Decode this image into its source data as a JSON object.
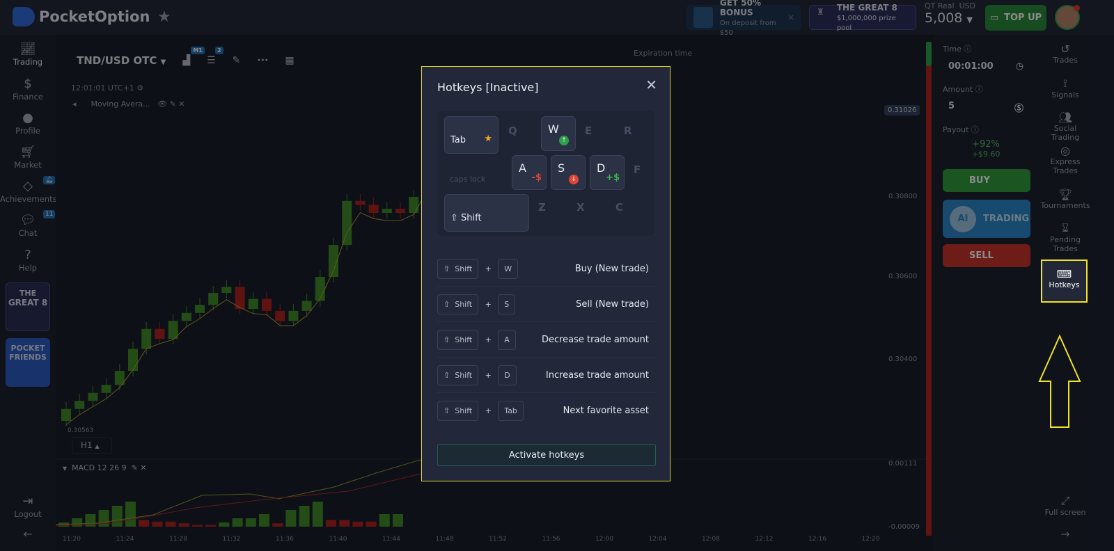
{
  "header": {
    "logo": "PocketOption",
    "promo1": {
      "title": "GET 50% BONUS",
      "sub": "On deposit from $50"
    },
    "promo2": {
      "title": "THE GREAT 8",
      "sub": "$1,000,000 prize pool"
    },
    "account_type": "QT Real",
    "currency": "USD",
    "balance": "5,008",
    "topup": "TOP UP"
  },
  "sidebar": {
    "items": [
      {
        "label": "Trading",
        "icon": "chart-icon"
      },
      {
        "label": "Finance",
        "icon": "dollar-icon"
      },
      {
        "label": "Profile",
        "icon": "user-icon"
      },
      {
        "label": "Market",
        "icon": "cart-icon"
      },
      {
        "label": "Achievements",
        "icon": "diamond-icon"
      },
      {
        "label": "Chat",
        "icon": "chat-icon"
      },
      {
        "label": "Help",
        "icon": "help-icon"
      }
    ],
    "chat_badge": "11",
    "banner1": {
      "l1": "THE",
      "l2": "GREAT 8"
    },
    "banner2": {
      "l1": "POCKET",
      "l2": "FRIENDS"
    },
    "logout": "Logout"
  },
  "chart": {
    "asset": "TND/USD OTC",
    "timeframe_badge": "M1",
    "indicators_badge": "2",
    "clock": "12:01:01 UTC+1",
    "indicator": "Moving Avera...",
    "expiration": "Expiration time",
    "current_price": "0.31026",
    "price_ticks": [
      "0.30800",
      "0.30600",
      "0.30400"
    ],
    "bottom_price": "0.30563",
    "period": "H1",
    "macd": "MACD  12 26 9",
    "macd_ticks": [
      "0.00111",
      "-0.00009"
    ],
    "time_labels": [
      "11:20",
      "11:24",
      "11:28",
      "11:32",
      "11:36",
      "11:40",
      "11:44",
      "11:48",
      "11:52",
      "11:56",
      "12:00",
      "12:04",
      "12:08",
      "12:12",
      "12:16",
      "12:20"
    ],
    "first_open": 0.3024,
    "closes": [
      0.3027,
      0.3029,
      0.3031,
      0.3033,
      0.30365,
      0.3042,
      0.3047,
      0.30445,
      0.3049,
      0.3051,
      0.3053,
      0.3056,
      0.30575,
      0.3052,
      0.30545,
      0.30515,
      0.3049,
      0.30515,
      0.3054,
      0.306,
      0.3068,
      0.3079,
      0.3078,
      0.3076,
      0.3077,
      0.3076,
      0.308,
      0.3088
    ],
    "macd_hist": [
      1,
      2,
      3,
      4,
      5,
      6,
      -4,
      -3,
      -3,
      -2,
      -1,
      -1,
      1,
      2,
      2,
      3,
      -2,
      4,
      5,
      6,
      -4,
      -4,
      -3,
      -3,
      3,
      3
    ],
    "up_color": "#3f8a2a",
    "down_color": "#b0231f"
  },
  "trade": {
    "time_label": "Time",
    "time": "00:01:00",
    "amount_label": "Amount",
    "amount": "5",
    "payout_label": "Payout",
    "payout_pct": "+92%",
    "payout_amt": "+$9.60",
    "buy": "BUY",
    "ai": "AI",
    "ai_trading": "TRADING",
    "sell": "SELL"
  },
  "rightbar": {
    "items": [
      {
        "label": "Trades"
      },
      {
        "label": "Signals"
      },
      {
        "label": "Social Trading"
      },
      {
        "label": "Express Trades"
      },
      {
        "label": "Tournaments"
      },
      {
        "label": "Pending Trades"
      }
    ],
    "hotkeys": "Hotkeys",
    "fullscreen": "Full screen"
  },
  "modal": {
    "title": "Hotkeys [Inactive]",
    "keys": {
      "tab": "Tab",
      "q": "Q",
      "w": "W",
      "e": "E",
      "r": "R",
      "caps": "caps lock",
      "a": "A",
      "a_hint": "-$",
      "s": "S",
      "d": "D",
      "d_hint": "+$",
      "f": "F",
      "shift": "Shift",
      "z": "Z",
      "x": "X",
      "c": "C"
    },
    "shortcuts": [
      {
        "mod": "Shift",
        "key": "W",
        "desc": "Buy (New trade)"
      },
      {
        "mod": "Shift",
        "key": "S",
        "desc": "Sell (New trade)"
      },
      {
        "mod": "Shift",
        "key": "A",
        "desc": "Decrease trade amount"
      },
      {
        "mod": "Shift",
        "key": "D",
        "desc": "Increase trade amount"
      },
      {
        "mod": "Shift",
        "key": "Tab",
        "desc": "Next favorite asset"
      }
    ],
    "plus": "+",
    "activate": "Activate hotkeys"
  },
  "highlight_color": "#eee22a"
}
